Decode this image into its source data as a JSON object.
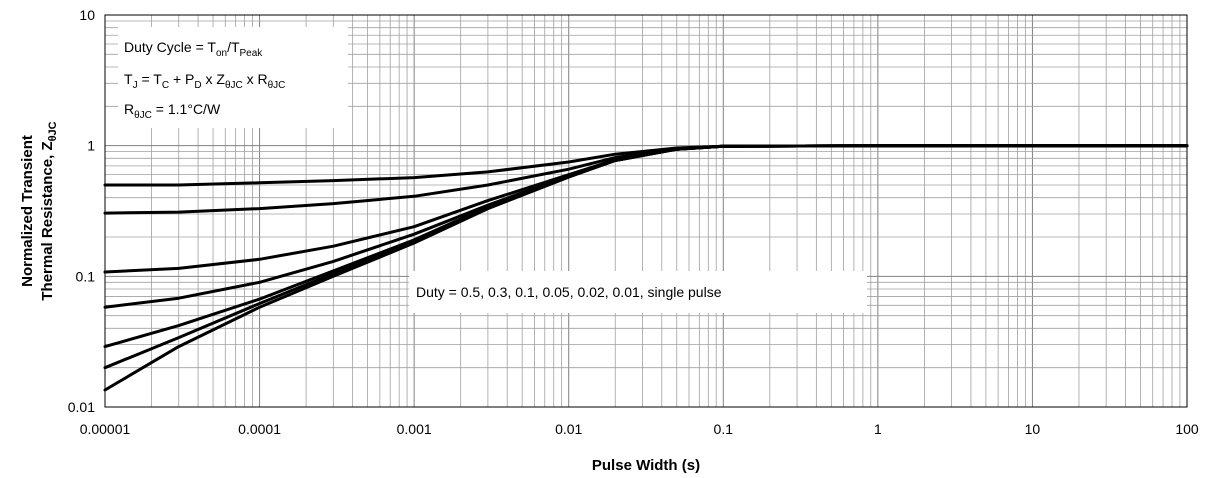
{
  "chart_data": {
    "type": "line",
    "x_scale": "log",
    "y_scale": "log",
    "xlabel": "Pulse Width (s)",
    "ylabel": {
      "line1": "Normalized Transient",
      "line2_main": "Thermal Resistance, Z",
      "line2_sub": "θJC"
    },
    "xlim": [
      1e-05,
      100
    ],
    "ylim": [
      0.01,
      10
    ],
    "x_tick_labels": [
      "0.00001",
      "0.0001",
      "0.001",
      "0.01",
      "0.1",
      "1",
      "10",
      "100"
    ],
    "y_tick_labels": [
      "0.01",
      "0.1",
      "1",
      "10"
    ],
    "grid": true,
    "annotations": {
      "duty_cycle": {
        "pre": "Duty Cycle = T",
        "on_sub": "on",
        "mid": "/T",
        "peak_sub": "Peak"
      },
      "tj_formula": {
        "p1": "T",
        "s1": "J",
        "p2": " = T",
        "s2": "C",
        "p3": " + P",
        "s3": "D",
        "p4": " x Z",
        "s4": "θJC",
        "p5": " x R",
        "s5": "θJC"
      },
      "rth": {
        "p1": "R",
        "s1": "θJC",
        "p2": " = 1.1°C/W"
      },
      "duty_list": "Duty = 0.5, 0.3, 0.1, 0.05, 0.02, 0.01, single pulse"
    },
    "series": [
      {
        "points": [
          [
            1e-05,
            0.5
          ],
          [
            3e-05,
            0.5
          ],
          [
            0.0001,
            0.52
          ],
          [
            0.0003,
            0.54
          ],
          [
            0.001,
            0.57
          ],
          [
            0.003,
            0.63
          ],
          [
            0.01,
            0.75
          ],
          [
            0.02,
            0.86
          ],
          [
            0.05,
            0.96
          ],
          [
            0.1,
            0.99
          ],
          [
            1,
            1.0
          ],
          [
            10,
            1.0
          ],
          [
            100,
            1.0
          ]
        ]
      },
      {
        "points": [
          [
            1e-05,
            0.305
          ],
          [
            3e-05,
            0.31
          ],
          [
            0.0001,
            0.33
          ],
          [
            0.0003,
            0.36
          ],
          [
            0.001,
            0.41
          ],
          [
            0.003,
            0.5
          ],
          [
            0.01,
            0.66
          ],
          [
            0.02,
            0.81
          ],
          [
            0.05,
            0.95
          ],
          [
            0.1,
            0.99
          ],
          [
            1,
            1.0
          ],
          [
            10,
            1.0
          ],
          [
            100,
            1.0
          ]
        ]
      },
      {
        "points": [
          [
            1e-05,
            0.108
          ],
          [
            3e-05,
            0.115
          ],
          [
            0.0001,
            0.135
          ],
          [
            0.0003,
            0.17
          ],
          [
            0.001,
            0.24
          ],
          [
            0.003,
            0.38
          ],
          [
            0.01,
            0.6
          ],
          [
            0.02,
            0.78
          ],
          [
            0.05,
            0.94
          ],
          [
            0.1,
            0.99
          ],
          [
            1,
            1.0
          ],
          [
            10,
            1.0
          ],
          [
            100,
            1.0
          ]
        ]
      },
      {
        "points": [
          [
            1e-05,
            0.058
          ],
          [
            3e-05,
            0.068
          ],
          [
            0.0001,
            0.09
          ],
          [
            0.0003,
            0.13
          ],
          [
            0.001,
            0.21
          ],
          [
            0.003,
            0.35
          ],
          [
            0.01,
            0.59
          ],
          [
            0.02,
            0.77
          ],
          [
            0.05,
            0.94
          ],
          [
            0.1,
            0.99
          ],
          [
            1,
            1.0
          ],
          [
            10,
            1.0
          ],
          [
            100,
            1.0
          ]
        ]
      },
      {
        "points": [
          [
            1e-05,
            0.029
          ],
          [
            3e-05,
            0.042
          ],
          [
            0.0001,
            0.067
          ],
          [
            0.0003,
            0.11
          ],
          [
            0.001,
            0.19
          ],
          [
            0.003,
            0.34
          ],
          [
            0.01,
            0.58
          ],
          [
            0.02,
            0.77
          ],
          [
            0.05,
            0.94
          ],
          [
            0.1,
            0.99
          ],
          [
            1,
            1.0
          ],
          [
            10,
            1.0
          ],
          [
            100,
            1.0
          ]
        ]
      },
      {
        "points": [
          [
            1e-05,
            0.02
          ],
          [
            3e-05,
            0.034
          ],
          [
            0.0001,
            0.062
          ],
          [
            0.0003,
            0.105
          ],
          [
            0.001,
            0.185
          ],
          [
            0.003,
            0.335
          ],
          [
            0.01,
            0.58
          ],
          [
            0.02,
            0.77
          ],
          [
            0.05,
            0.94
          ],
          [
            0.1,
            0.99
          ],
          [
            1,
            1.0
          ],
          [
            10,
            1.0
          ],
          [
            100,
            1.0
          ]
        ]
      },
      {
        "points": [
          [
            1e-05,
            0.0135
          ],
          [
            3e-05,
            0.029
          ],
          [
            0.0001,
            0.058
          ],
          [
            0.0003,
            0.1
          ],
          [
            0.001,
            0.18
          ],
          [
            0.003,
            0.33
          ],
          [
            0.01,
            0.575
          ],
          [
            0.02,
            0.77
          ],
          [
            0.05,
            0.94
          ],
          [
            0.1,
            0.99
          ],
          [
            1,
            1.0
          ],
          [
            10,
            1.0
          ],
          [
            100,
            1.0
          ]
        ]
      }
    ]
  }
}
